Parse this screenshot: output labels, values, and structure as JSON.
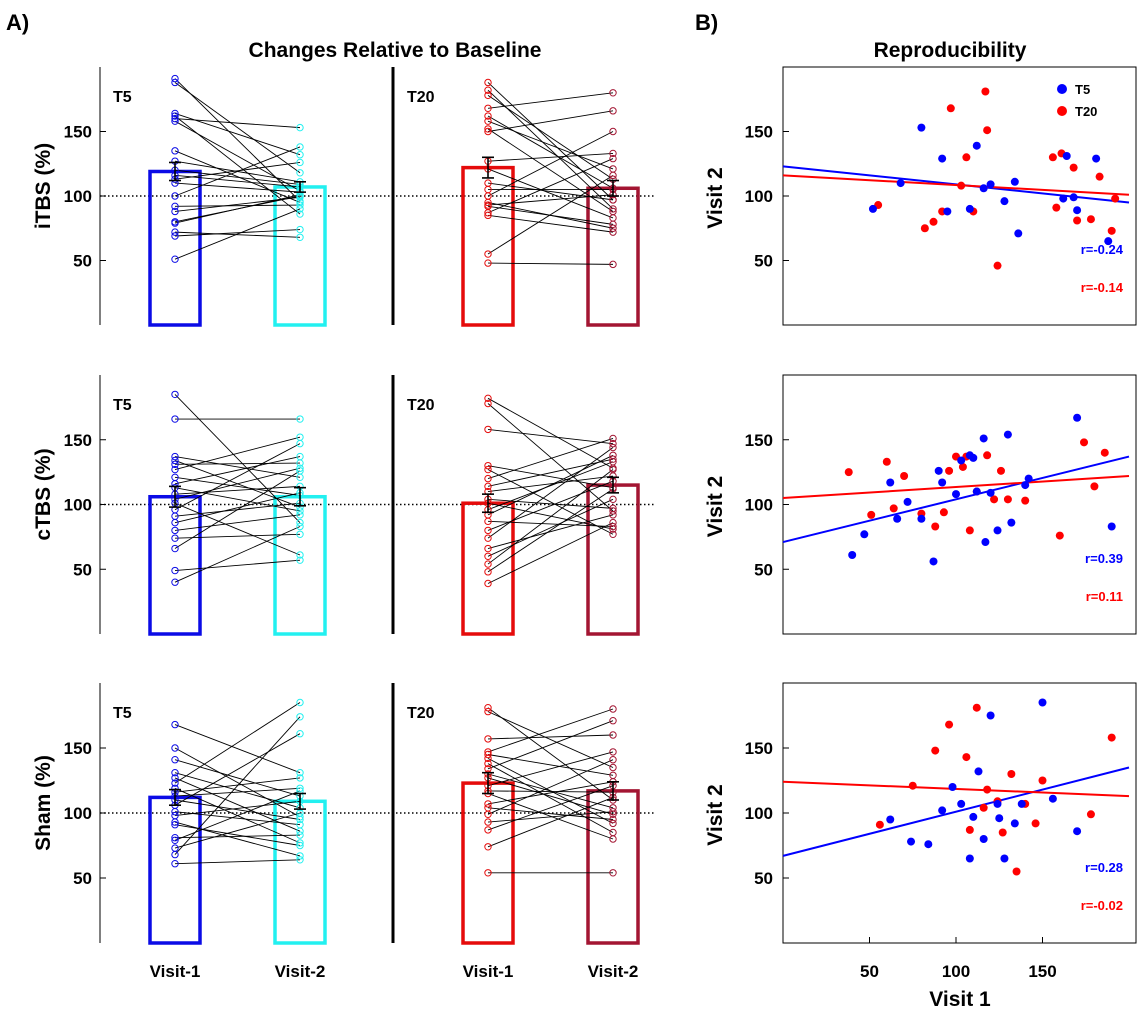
{
  "panel_labels": {
    "a": "A)",
    "b": "B)"
  },
  "titles": {
    "left": "Changes Relative to Baseline",
    "right": "Reproducibility"
  },
  "colors": {
    "t5_visit1": "#0b0be6",
    "t5_visit2": "#22f0f0",
    "t20_visit1": "#e50b0b",
    "t20_visit2": "#a31532",
    "t5_scatter": "#0000ff",
    "t20_scatter": "#ff0000"
  },
  "chart_data": [
    {
      "type": "bar",
      "protocol": "iTBS",
      "ylabel": "iTBS (%)",
      "groups": [
        {
          "label": "T5",
          "categories": [
            "Visit-1",
            "Visit-2"
          ],
          "means": [
            119,
            107
          ],
          "sem": [
            7,
            4
          ],
          "v1": [
            191,
            188,
            164,
            162,
            160,
            158,
            135,
            127,
            120,
            116,
            113,
            110,
            100,
            92,
            88,
            80,
            79,
            72,
            69,
            51
          ],
          "v2": [
            96,
            118,
            132,
            86,
            153,
            104,
            95,
            111,
            109,
            107,
            126,
            103,
            138,
            93,
            99,
            100,
            101,
            68,
            74,
            90
          ]
        },
        {
          "label": "T20",
          "categories": [
            "Visit-1",
            "Visit-2"
          ],
          "means": [
            122,
            106
          ],
          "sem": [
            8,
            6
          ],
          "v1": [
            188,
            182,
            178,
            168,
            162,
            158,
            152,
            150,
            127,
            121,
            110,
            105,
            100,
            95,
            93,
            92,
            87,
            85,
            55,
            48
          ],
          "v2": [
            97,
            90,
            113,
            180,
            106,
            121,
            88,
            166,
            133,
            83,
            97,
            105,
            150,
            75,
            101,
            78,
            129,
            72,
            116,
            47
          ]
        }
      ],
      "ylim": [
        0,
        200
      ],
      "yticks": [
        50,
        100,
        150
      ]
    },
    {
      "type": "bar",
      "protocol": "cTBS",
      "ylabel": "cTBS (%)",
      "groups": [
        {
          "label": "T5",
          "categories": [
            "Visit-1",
            "Visit-2"
          ],
          "means": [
            106,
            106
          ],
          "sem": [
            8,
            7
          ],
          "v1": [
            185,
            166,
            137,
            134,
            131,
            127,
            121,
            116,
            113,
            108,
            104,
            101,
            96,
            91,
            86,
            80,
            74,
            66,
            49,
            40
          ],
          "v2": [
            86,
            166,
            121,
            98,
            132,
            152,
            107,
            137,
            95,
            114,
            128,
            61,
            147,
            101,
            109,
            92,
            77,
            126,
            57,
            83
          ]
        },
        {
          "label": "T20",
          "categories": [
            "Visit-1",
            "Visit-2"
          ],
          "means": [
            101,
            115
          ],
          "sem": [
            7,
            6
          ],
          "v1": [
            182,
            178,
            158,
            130,
            127,
            120,
            114,
            110,
            104,
            101,
            96,
            92,
            87,
            80,
            74,
            66,
            60,
            54,
            48,
            39
          ],
          "v2": [
            128,
            95,
            147,
            113,
            77,
            151,
            135,
            122,
            97,
            81,
            133,
            138,
            83,
            118,
            144,
            92,
            104,
            127,
            112,
            86
          ]
        }
      ],
      "ylim": [
        0,
        200
      ],
      "yticks": [
        50,
        100,
        150
      ]
    },
    {
      "type": "bar",
      "protocol": "Sham",
      "ylabel": "Sham (%)",
      "groups": [
        {
          "label": "T5",
          "categories": [
            "Visit-1",
            "Visit-2"
          ],
          "means": [
            112,
            109
          ],
          "sem": [
            6,
            6
          ],
          "v1": [
            168,
            150,
            141,
            131,
            127,
            123,
            119,
            116,
            113,
            110,
            106,
            101,
            98,
            93,
            91,
            81,
            79,
            73,
            68,
            61
          ],
          "v2": [
            131,
            97,
            113,
            104,
            86,
            185,
            77,
            127,
            119,
            95,
            161,
            91,
            109,
            67,
            75,
            83,
            117,
            100,
            174,
            64
          ]
        },
        {
          "label": "T20",
          "categories": [
            "Visit-1",
            "Visit-2"
          ],
          "means": [
            123,
            117
          ],
          "sem": [
            8,
            7
          ],
          "v1": [
            181,
            178,
            157,
            147,
            145,
            142,
            138,
            134,
            130,
            127,
            121,
            117,
            115,
            107,
            104,
            99,
            93,
            87,
            74,
            54
          ],
          "v2": [
            110,
            135,
            160,
            180,
            129,
            92,
            85,
            171,
            104,
            99,
            147,
            116,
            80,
            124,
            95,
            141,
            101,
            121,
            112,
            54
          ]
        }
      ],
      "ylim": [
        0,
        200
      ],
      "yticks": [
        50,
        100,
        150
      ]
    },
    {
      "type": "scatter",
      "protocol": "iTBS",
      "ylabel": "Visit 2",
      "xlim": [
        0,
        200
      ],
      "ylim": [
        0,
        200
      ],
      "yticks": [
        50,
        100,
        150
      ],
      "legend": [
        "T5",
        "T20"
      ],
      "legend_position": "top-right",
      "series": [
        {
          "name": "T5",
          "points": [
            [
              52,
              90
            ],
            [
              68,
              110
            ],
            [
              80,
              153
            ],
            [
              92,
              129
            ],
            [
              95,
              88
            ],
            [
              108,
              90
            ],
            [
              112,
              139
            ],
            [
              116,
              106
            ],
            [
              120,
              109
            ],
            [
              128,
              96
            ],
            [
              134,
              111
            ],
            [
              136,
              71
            ],
            [
              162,
              98
            ],
            [
              164,
              131
            ],
            [
              168,
              99
            ],
            [
              170,
              89
            ],
            [
              181,
              129
            ],
            [
              188,
              65
            ]
          ]
        },
        {
          "name": "T20",
          "points": [
            [
              55,
              93
            ],
            [
              82,
              75
            ],
            [
              87,
              80
            ],
            [
              92,
              88
            ],
            [
              97,
              168
            ],
            [
              103,
              108
            ],
            [
              106,
              130
            ],
            [
              110,
              88
            ],
            [
              117,
              181
            ],
            [
              118,
              151
            ],
            [
              124,
              46
            ],
            [
              158,
              91
            ],
            [
              161,
              133
            ],
            [
              168,
              122
            ],
            [
              170,
              81
            ],
            [
              178,
              82
            ],
            [
              183,
              115
            ],
            [
              190,
              73
            ],
            [
              192,
              98
            ],
            [
              156,
              130
            ]
          ]
        }
      ],
      "fits": [
        {
          "name": "T5",
          "y_at_0": 123,
          "y_at_200": 95,
          "r_label": "r=-0.24"
        },
        {
          "name": "T20",
          "y_at_0": 116,
          "y_at_200": 101,
          "r_label": "r=-0.14"
        }
      ]
    },
    {
      "type": "scatter",
      "protocol": "cTBS",
      "ylabel": "Visit 2",
      "xlim": [
        0,
        200
      ],
      "ylim": [
        0,
        200
      ],
      "yticks": [
        50,
        100,
        150
      ],
      "series": [
        {
          "name": "T5",
          "points": [
            [
              40,
              61
            ],
            [
              47,
              77
            ],
            [
              62,
              117
            ],
            [
              66,
              89
            ],
            [
              72,
              102
            ],
            [
              80,
              89
            ],
            [
              87,
              56
            ],
            [
              90,
              126
            ],
            [
              92,
              117
            ],
            [
              100,
              108
            ],
            [
              103,
              134
            ],
            [
              108,
              138
            ],
            [
              110,
              136
            ],
            [
              112,
              110
            ],
            [
              116,
              151
            ],
            [
              117,
              71
            ],
            [
              120,
              109
            ],
            [
              124,
              80
            ],
            [
              130,
              154
            ],
            [
              132,
              86
            ],
            [
              140,
              115
            ],
            [
              142,
              120
            ],
            [
              170,
              167
            ],
            [
              190,
              83
            ]
          ]
        },
        {
          "name": "T20",
          "points": [
            [
              38,
              125
            ],
            [
              51,
              92
            ],
            [
              60,
              133
            ],
            [
              64,
              97
            ],
            [
              70,
              122
            ],
            [
              80,
              93
            ],
            [
              88,
              83
            ],
            [
              93,
              94
            ],
            [
              96,
              126
            ],
            [
              100,
              137
            ],
            [
              104,
              129
            ],
            [
              106,
              137
            ],
            [
              108,
              80
            ],
            [
              112,
              110
            ],
            [
              118,
              138
            ],
            [
              122,
              104
            ],
            [
              126,
              126
            ],
            [
              130,
              104
            ],
            [
              140,
              103
            ],
            [
              160,
              76
            ],
            [
              174,
              148
            ],
            [
              180,
              114
            ],
            [
              186,
              140
            ]
          ]
        }
      ],
      "fits": [
        {
          "name": "T5",
          "y_at_0": 71,
          "y_at_200": 137,
          "r_label": "r=0.39"
        },
        {
          "name": "T20",
          "y_at_0": 105,
          "y_at_200": 122,
          "r_label": "r=0.11"
        }
      ]
    },
    {
      "type": "scatter",
      "protocol": "Sham",
      "ylabel": "Visit 2",
      "xlabel": "Visit 1",
      "xlim": [
        0,
        200
      ],
      "ylim": [
        0,
        200
      ],
      "xticks": [
        50,
        100,
        150
      ],
      "yticks": [
        50,
        100,
        150
      ],
      "series": [
        {
          "name": "T5",
          "points": [
            [
              62,
              95
            ],
            [
              74,
              78
            ],
            [
              84,
              76
            ],
            [
              92,
              102
            ],
            [
              98,
              120
            ],
            [
              103,
              107
            ],
            [
              108,
              65
            ],
            [
              110,
              97
            ],
            [
              113,
              132
            ],
            [
              116,
              80
            ],
            [
              120,
              175
            ],
            [
              124,
              107
            ],
            [
              125,
              96
            ],
            [
              128,
              65
            ],
            [
              134,
              92
            ],
            [
              138,
              107
            ],
            [
              150,
              185
            ],
            [
              170,
              86
            ],
            [
              156,
              111
            ]
          ]
        },
        {
          "name": "T20",
          "points": [
            [
              56,
              91
            ],
            [
              75,
              121
            ],
            [
              88,
              148
            ],
            [
              96,
              168
            ],
            [
              106,
              143
            ],
            [
              108,
              87
            ],
            [
              112,
              181
            ],
            [
              116,
              104
            ],
            [
              118,
              118
            ],
            [
              124,
              109
            ],
            [
              127,
              85
            ],
            [
              132,
              130
            ],
            [
              135,
              55
            ],
            [
              140,
              107
            ],
            [
              146,
              92
            ],
            [
              150,
              125
            ],
            [
              178,
              99
            ],
            [
              190,
              158
            ]
          ]
        }
      ],
      "fits": [
        {
          "name": "T5",
          "y_at_0": 67,
          "y_at_200": 135,
          "r_label": "r=0.28"
        },
        {
          "name": "T20",
          "y_at_0": 124,
          "y_at_200": 113,
          "r_label": "r=-0.02"
        }
      ]
    }
  ]
}
